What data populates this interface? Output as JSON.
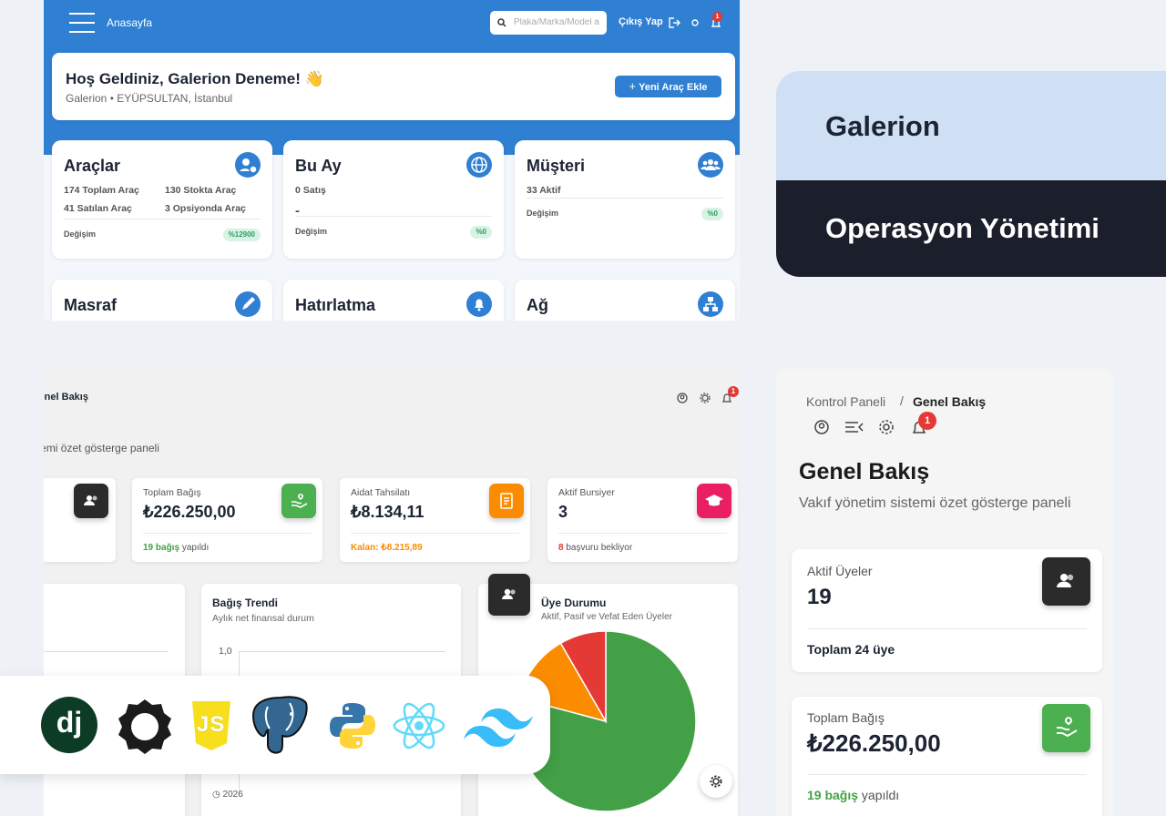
{
  "top_app": {
    "nav_title": "Anasayfa",
    "search_placeholder": "Plaka/Marka/Model a",
    "logout": "Çıkış Yap",
    "badge": "1",
    "welcome": {
      "title": "Hoş Geldiniz, Galerion Deneme! 👋",
      "subtitle": "Galerion • EYÜPSULTAN, İstanbul",
      "button": "Yeni Araç Ekle"
    },
    "cards": [
      {
        "title": "Araçlar",
        "stats": [
          "174 Toplam Araç",
          "130 Stokta Araç",
          "41 Satılan Araç",
          "3 Opsiyonda Araç"
        ],
        "change_label": "Değişim",
        "change": "%12900"
      },
      {
        "title": "Bu Ay",
        "stats": [
          "0 Satış",
          "-"
        ],
        "change_label": "Değişim",
        "change": "%0"
      },
      {
        "title": "Müşteri",
        "stats": [
          "33 Aktif"
        ],
        "change_label": "Değişim",
        "change": "%0"
      },
      {
        "title": "Masraf"
      },
      {
        "title": "Hatırlatma"
      },
      {
        "title": "Ağ"
      }
    ]
  },
  "labels": {
    "product": "Galerion",
    "module": "Operasyon Yönetimi"
  },
  "dashboard": {
    "title": "Genel Bakış",
    "subtitle": "Vakıf yönetim sistemi özet gösterge paneli",
    "badge": "1",
    "stats": [
      {
        "label": "Toplam Bağış",
        "value": "₺226.250,00",
        "note_strong": "19 bağış",
        "note": "yapıldı"
      },
      {
        "label": "Aidat Tahsilatı",
        "value": "₺8.134,11",
        "note_strong": "Kalan: ₺8.215,89"
      },
      {
        "label": "Aktif Bursiyer",
        "value": "3",
        "note_strong": "8",
        "note": "başvuru bekliyor"
      }
    ],
    "trend": {
      "title": "Bağış Trendi",
      "subtitle": "Aylık net finansal durum",
      "ytick": "1,0",
      "footer": "2026"
    },
    "members": {
      "title": "Üye Durumu",
      "subtitle": "Aktif, Pasif ve Vefat Eden Üyeler",
      "pie": {
        "values": [
          19,
          3,
          2
        ],
        "colors": [
          "#43a047",
          "#fb8c00",
          "#e53935"
        ]
      }
    }
  },
  "mobile": {
    "breadcrumb": [
      "Kontrol Paneli",
      "Genel Bakış"
    ],
    "badge": "1",
    "title": "Genel Bakış",
    "subtitle": "Vakıf yönetim sistemi özet gösterge paneli",
    "cards": [
      {
        "label": "Aktif Üyeler",
        "value": "19",
        "note": "Toplam 24 üye"
      },
      {
        "label": "Toplam Bağış",
        "value": "₺226.250,00",
        "note_strong": "19 bağış",
        "note": "yapıldı"
      }
    ]
  },
  "tech": {
    "django": "dj",
    "js": "JS"
  }
}
